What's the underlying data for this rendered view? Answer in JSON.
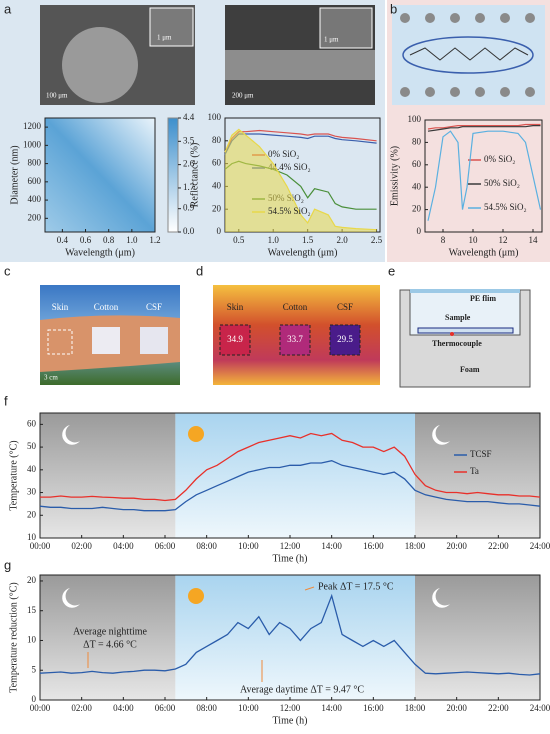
{
  "figure": {
    "panel_labels": [
      "a",
      "b",
      "c",
      "d",
      "e",
      "f",
      "g"
    ],
    "sem_scale_bars": [
      "100 μm",
      "1 μm",
      "200 μm",
      "1 μm"
    ],
    "photo_labels": [
      "Skin",
      "Cotton",
      "CSF"
    ],
    "photo_scale": "3 cm",
    "thermal_labels": [
      "Skin",
      "Cotton",
      "CSF"
    ],
    "thermal_temps": [
      34.9,
      33.7,
      29.5
    ],
    "setup_labels": [
      "PE flim",
      "Sample",
      "Thermocouple",
      "Foam"
    ]
  },
  "chart_data": [
    {
      "type": "heatmap",
      "xlabel": "Wavelength (μm)",
      "ylabel": "Diameter (nm)",
      "xlim": [
        0.25,
        1.2
      ],
      "ylim": [
        50,
        1300
      ],
      "xticks": [
        0.4,
        0.6,
        0.8,
        {
          "value": 1.0,
          "label": "1.0"
        },
        1.2
      ],
      "yticks": [
        200,
        400,
        600,
        800,
        1000,
        1200
      ],
      "colorbar_lim": [
        0,
        4.4
      ],
      "colorbar_ticks": [
        {
          "value": 0,
          "label": "0.0"
        },
        0.9,
        1.7,
        2.6,
        3.5,
        4.4
      ]
    },
    {
      "type": "line",
      "xlabel": "Wavelength (μm)",
      "ylabel": "Reflectance (%)",
      "xlim": [
        0.3,
        2.55
      ],
      "ylim": [
        0,
        100
      ],
      "xticks": [
        0.5,
        {
          "value": 1.0,
          "label": "1.0"
        },
        1.5,
        {
          "value": 2.0,
          "label": "2.0"
        },
        2.5
      ],
      "yticks": [
        0,
        20,
        40,
        60,
        80,
        100
      ],
      "x": [
        0.3,
        0.4,
        0.5,
        0.6,
        0.8,
        1.0,
        1.2,
        1.4,
        1.5,
        1.6,
        1.8,
        1.9,
        2.0,
        2.2,
        2.5
      ],
      "series": [
        {
          "name": "0% SiO₂",
          "color": "#d9534f",
          "values": [
            70,
            82,
            88,
            88,
            89,
            88,
            87,
            86,
            85,
            86,
            86,
            84,
            83,
            82,
            80
          ]
        },
        {
          "name": "44.4% SiO₂",
          "color": "#3a5fad",
          "values": [
            68,
            80,
            86,
            86,
            86,
            85,
            84,
            83,
            82,
            84,
            84,
            82,
            81,
            80,
            78
          ]
        },
        {
          "name": "50% SiO₂",
          "color": "#4a8f3a",
          "values": [
            55,
            60,
            62,
            60,
            58,
            55,
            50,
            40,
            30,
            38,
            35,
            25,
            22,
            20,
            20
          ]
        },
        {
          "name": "54.5% SiO₂",
          "color": "#e8d84a",
          "values": [
            70,
            85,
            90,
            85,
            75,
            60,
            40,
            15,
            8,
            20,
            15,
            5,
            4,
            3,
            2
          ]
        }
      ]
    },
    {
      "type": "line",
      "xlabel": "Wavelength (μm)",
      "ylabel": "Emissivity (%)",
      "xlim": [
        6.8,
        14.6
      ],
      "ylim": [
        0,
        100
      ],
      "xticks": [
        8,
        10,
        12,
        14
      ],
      "yticks": [
        0,
        20,
        40,
        60,
        80,
        100
      ],
      "x": [
        7,
        7.5,
        8,
        8.5,
        9,
        9.3,
        9.6,
        10,
        11,
        12,
        13,
        13.5,
        14,
        14.5
      ],
      "series": [
        {
          "name": "0% SiO₂",
          "color": "#d9534f",
          "values": [
            92,
            93,
            93,
            94,
            95,
            95,
            95,
            95,
            95,
            95,
            95,
            96,
            96,
            96
          ]
        },
        {
          "name": "50% SiO₂",
          "color": "#3a3a3a",
          "values": [
            90,
            91,
            92,
            93,
            93,
            94,
            94,
            94,
            94,
            94,
            94,
            94,
            95,
            95
          ]
        },
        {
          "name": "54.5% SiO₂",
          "color": "#5ab0e0",
          "values": [
            10,
            40,
            85,
            90,
            80,
            20,
            40,
            88,
            90,
            90,
            88,
            80,
            50,
            20
          ]
        }
      ]
    },
    {
      "type": "line",
      "xlabel": "Time (h)",
      "ylabel": "Temperature (°C)",
      "xlim": [
        0,
        24
      ],
      "ylim": [
        10,
        65
      ],
      "xticks": [
        {
          "value": 0,
          "label": "00:00"
        },
        {
          "value": 2,
          "label": "02:00"
        },
        {
          "value": 4,
          "label": "04:00"
        },
        {
          "value": 6,
          "label": "06:00"
        },
        {
          "value": 8,
          "label": "08:00"
        },
        {
          "value": 10,
          "label": "10:00"
        },
        {
          "value": 12,
          "label": "12:00"
        },
        {
          "value": 14,
          "label": "14:00"
        },
        {
          "value": 16,
          "label": "16:00"
        },
        {
          "value": 18,
          "label": "18:00"
        },
        {
          "value": 20,
          "label": "20:00"
        },
        {
          "value": 22,
          "label": "22:00"
        },
        {
          "value": 24,
          "label": "24:00"
        }
      ],
      "yticks": [
        10,
        20,
        30,
        40,
        50,
        60
      ],
      "x": [
        0,
        0.5,
        1,
        1.5,
        2,
        2.5,
        3,
        3.5,
        4,
        4.5,
        5,
        5.5,
        6,
        6.5,
        7,
        7.5,
        8,
        8.5,
        9,
        9.5,
        10,
        10.5,
        11,
        11.5,
        12,
        12.5,
        13,
        13.5,
        14,
        14.5,
        15,
        15.5,
        16,
        16.5,
        17,
        17.5,
        18,
        18.5,
        19,
        19.5,
        20,
        20.5,
        21,
        21.5,
        22,
        22.5,
        23,
        23.5,
        24
      ],
      "series": [
        {
          "name": "TCSF",
          "color": "#2a5caa",
          "values": [
            24,
            23.5,
            23.5,
            23,
            23,
            23,
            23.5,
            23,
            22.5,
            22.5,
            22,
            22,
            22,
            22.5,
            26,
            29,
            31,
            33,
            35,
            37,
            39,
            40,
            41,
            41,
            42,
            42,
            43,
            43,
            44,
            42,
            41,
            40,
            39,
            38,
            39,
            36,
            31,
            29,
            28,
            27,
            26.5,
            26,
            26,
            26,
            25.5,
            25,
            25,
            24.5,
            24
          ]
        },
        {
          "name": "Ta",
          "color": "#e8302a",
          "values": [
            28,
            28,
            28.5,
            28,
            28,
            28.3,
            28,
            27.8,
            27.5,
            27.5,
            27,
            27,
            26.5,
            27,
            31,
            36,
            40,
            42,
            45,
            48,
            50,
            52,
            53,
            54,
            55,
            54,
            56,
            55,
            56,
            53,
            52,
            50,
            50,
            48,
            50,
            46,
            38,
            33,
            31,
            30,
            30,
            29.5,
            30,
            29.5,
            29,
            29,
            28.5,
            28.5,
            28
          ]
        }
      ]
    },
    {
      "type": "line",
      "xlabel": "Time (h)",
      "ylabel": "Temperature reduction (°C)",
      "xlim": [
        0,
        24
      ],
      "ylim": [
        0,
        21
      ],
      "xticks": [
        {
          "value": 0,
          "label": "00:00"
        },
        {
          "value": 2,
          "label": "02:00"
        },
        {
          "value": 4,
          "label": "04:00"
        },
        {
          "value": 6,
          "label": "06:00"
        },
        {
          "value": 8,
          "label": "08:00"
        },
        {
          "value": 10,
          "label": "10:00"
        },
        {
          "value": 12,
          "label": "12:00"
        },
        {
          "value": 14,
          "label": "14:00"
        },
        {
          "value": 16,
          "label": "16:00"
        },
        {
          "value": 18,
          "label": "18:00"
        },
        {
          "value": 20,
          "label": "20:00"
        },
        {
          "value": 22,
          "label": "22:00"
        },
        {
          "value": 24,
          "label": "24:00"
        }
      ],
      "yticks": [
        0,
        5,
        10,
        15,
        20
      ],
      "x": [
        0,
        0.5,
        1,
        1.5,
        2,
        2.5,
        3,
        3.5,
        4,
        4.5,
        5,
        5.5,
        6,
        6.5,
        7,
        7.5,
        8,
        8.5,
        9,
        9.5,
        10,
        10.5,
        11,
        11.5,
        12,
        12.5,
        13,
        13.5,
        14,
        14.5,
        15,
        15.5,
        16,
        16.5,
        17,
        17.5,
        18,
        18.5,
        19,
        19.5,
        20,
        20.5,
        21,
        21.5,
        22,
        22.5,
        23,
        23.5,
        24
      ],
      "series": [
        {
          "color": "#2a5caa",
          "values": [
            4.5,
            4.6,
            4.7,
            4.5,
            4.6,
            4.8,
            4.6,
            4.5,
            4.7,
            4.8,
            5.0,
            5.0,
            4.9,
            5.2,
            6,
            8,
            9,
            10,
            11,
            13,
            12,
            14,
            11,
            13,
            12,
            10,
            12,
            13,
            17.5,
            11,
            10,
            9,
            10,
            9,
            10,
            8,
            6,
            4.5,
            4.4,
            4.5,
            4.6,
            4.7,
            4.6,
            4.5,
            4.4,
            4.5,
            4.3,
            4.2,
            4.4
          ]
        }
      ],
      "annotations": [
        "Average nighttime",
        "ΔT = 4.66 °C",
        "Average daytime ΔT = 9.47 °C",
        "Peak ΔT = 17.5 °C"
      ]
    }
  ]
}
